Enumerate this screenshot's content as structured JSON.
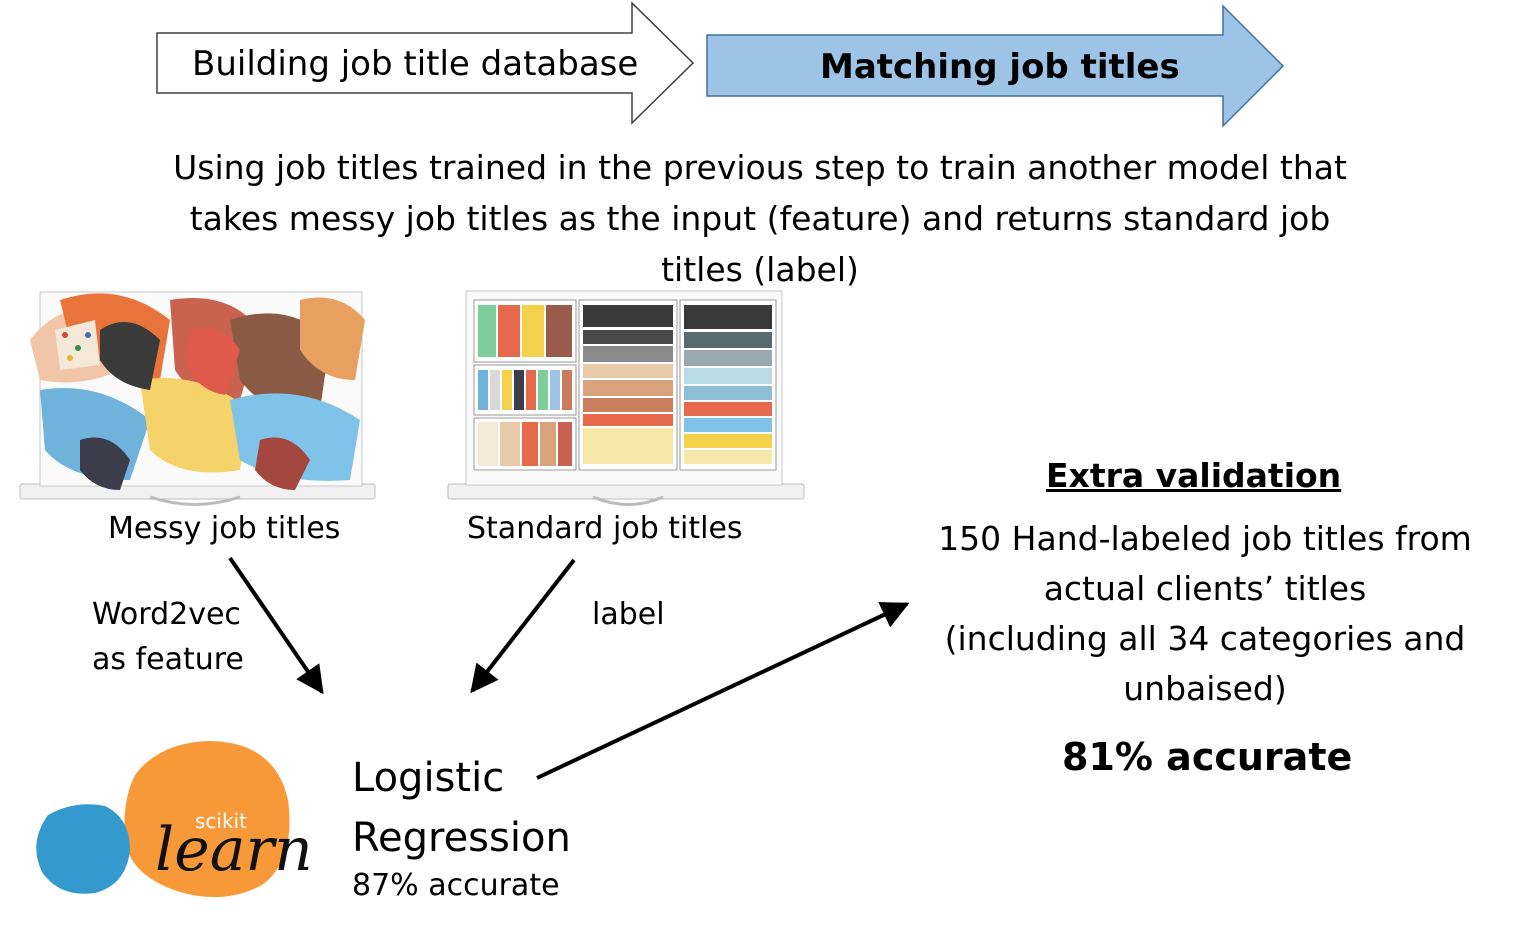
{
  "process": {
    "step1_label": "Building job title database",
    "step2_label": "Matching job titles",
    "step2_fill": "#9dc3e6"
  },
  "description_lines": [
    "Using job titles trained in the previous step to train another model that",
    "takes messy job titles as the input (feature) and returns standard job",
    "titles (label)"
  ],
  "inputs": {
    "messy_caption": "Messy job titles",
    "standard_caption": "Standard job titles"
  },
  "edges": {
    "feature_label_line1": "Word2vec",
    "feature_label_line2": "as feature",
    "label_edge": "label"
  },
  "model": {
    "logo_small_text": "scikit",
    "logo_big_text": "learn",
    "logo_orange": "#f89939",
    "logo_blue": "#3499cd",
    "name_line1": "Logistic",
    "name_line2": "Regression",
    "accuracy": "87% accurate"
  },
  "validation": {
    "title": "Extra validation",
    "line1": "150 Hand-labeled job titles from",
    "line2": "actual clients’ titles",
    "line3": "(including all 34 categories and",
    "line4": "unbaised)",
    "accuracy": "81% accurate"
  }
}
